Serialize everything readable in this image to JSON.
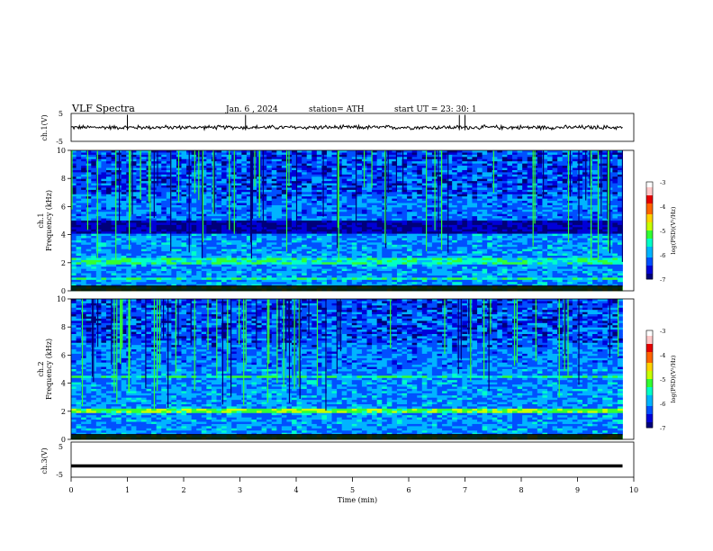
{
  "header": {
    "title": "VLF  Spectra",
    "date": "Jan.  6  , 2024",
    "station": "station= ATH",
    "start": "start  UT  =    23: 30: 1"
  },
  "colors": {
    "spectrum": [
      "#00007a",
      "#0000d8",
      "#0050ff",
      "#00b4ff",
      "#00ffc8",
      "#32ff32",
      "#c8ff00",
      "#ffd200",
      "#ff6400",
      "#e60000",
      "#ffc8c8",
      "#ffffff"
    ],
    "waveform": "#000000"
  },
  "chart_data": [
    {
      "type": "line",
      "name": "ch1-waveform",
      "ylabel": "ch.1(V)",
      "ylim": [
        -5,
        5
      ],
      "yticks": [
        "5",
        "-5"
      ],
      "description_values": {
        "mean_level": 0.0,
        "noise_amplitude": 0.6,
        "spikes_at_min": [
          1.0,
          3.1,
          6.9,
          7.0
        ]
      }
    },
    {
      "type": "heatmap",
      "name": "ch1-spectrogram",
      "ylabel": "ch.1\nFrequency  (kHz)",
      "ylim": [
        0,
        10
      ],
      "yticks": [
        "0",
        "2",
        "4",
        "6",
        "8",
        "10"
      ],
      "colorbar": {
        "label": "log(PSD)(V²/Hz)",
        "range": [
          -7,
          -3
        ],
        "ticks": [
          "-3",
          "-4",
          "-5",
          "-6",
          "-7"
        ]
      },
      "bands_khz": [
        [
          0.0,
          0.3,
          "saturated"
        ],
        [
          0.8,
          1.0,
          "high"
        ],
        [
          1.8,
          2.4,
          "high"
        ],
        [
          4.0,
          5.0,
          "low"
        ],
        [
          6.5,
          6.6,
          "high"
        ]
      ]
    },
    {
      "type": "heatmap",
      "name": "ch2-spectrogram",
      "ylabel": "ch.2\nFrequency  (kHz)",
      "ylim": [
        0,
        10
      ],
      "yticks": [
        "0",
        "2",
        "4",
        "6",
        "8",
        "10"
      ],
      "colorbar": {
        "label": "log(PSD)(V²/Hz)",
        "range": [
          -7,
          -3
        ],
        "ticks": [
          "-3",
          "-4",
          "-5",
          "-6",
          "-7"
        ]
      },
      "bands_khz": [
        [
          0.0,
          0.3,
          "saturated"
        ],
        [
          1.8,
          2.2,
          "peak"
        ],
        [
          4.4,
          4.6,
          "high"
        ]
      ]
    },
    {
      "type": "line",
      "name": "ch3-waveform",
      "ylabel": "ch.3(V)",
      "ylim": [
        -5,
        5
      ],
      "yticks": [
        "5",
        "-5"
      ],
      "description_values": {
        "mean_level": -1.8,
        "noise_amplitude": 0.0
      }
    }
  ],
  "xaxis": {
    "label": "Time  (min)",
    "range": [
      0,
      10
    ],
    "ticks": [
      "0",
      "1",
      "2",
      "3",
      "4",
      "5",
      "6",
      "7",
      "8",
      "9",
      "10"
    ],
    "data_end": 9.8
  }
}
